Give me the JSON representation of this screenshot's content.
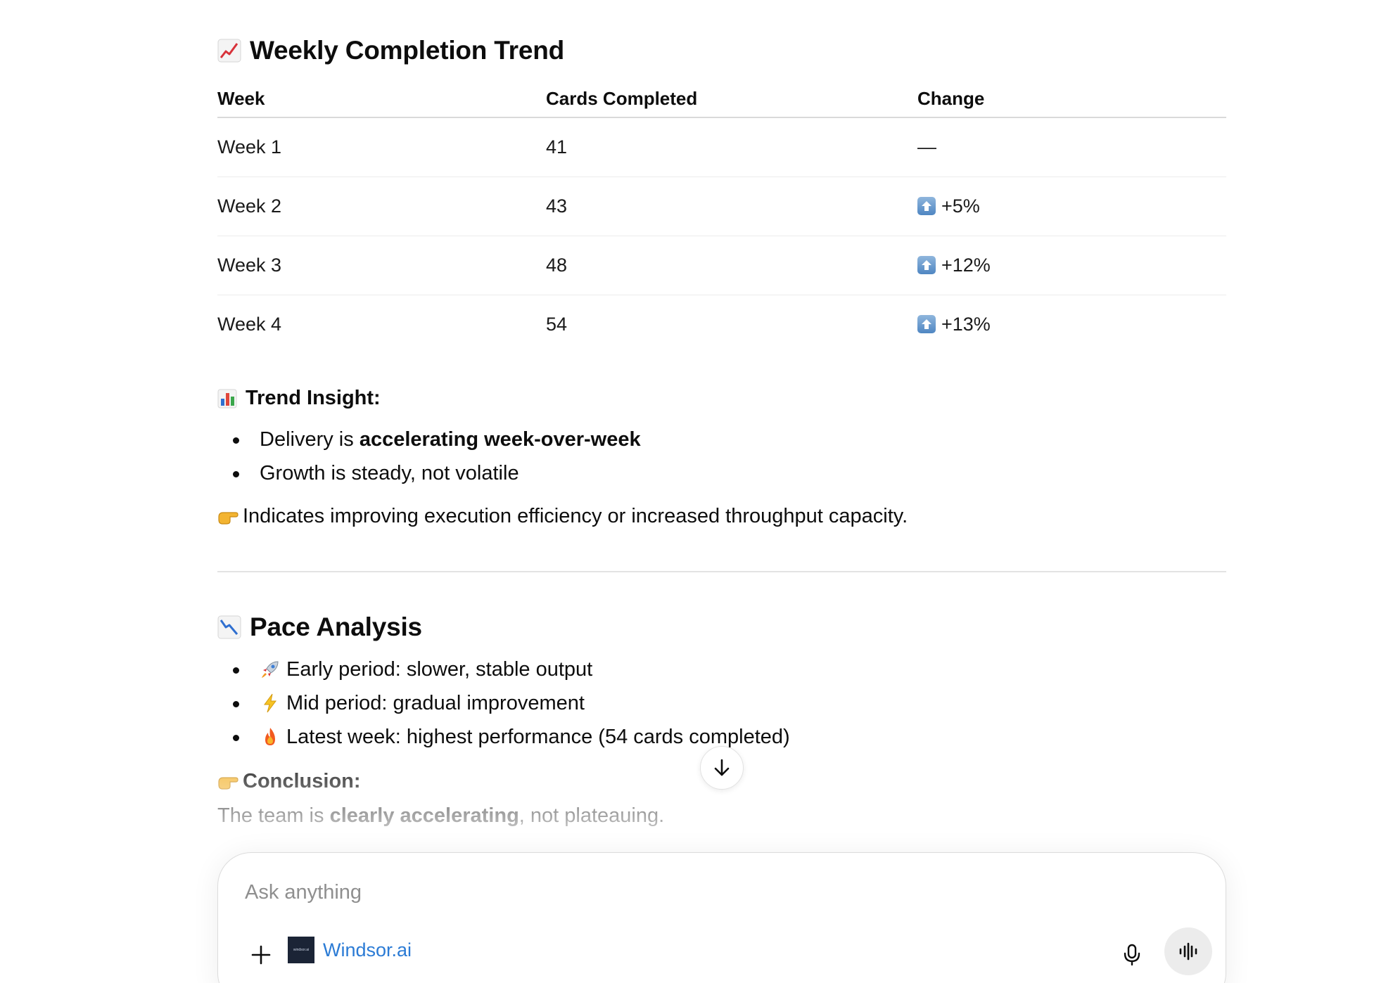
{
  "trend_section": {
    "title": "Weekly Completion Trend",
    "icon": "chart-increasing-emoji",
    "columns": [
      "Week",
      "Cards Completed",
      "Change"
    ],
    "rows": [
      {
        "week": "Week 1",
        "cards": "41",
        "change": "—",
        "up": false
      },
      {
        "week": "Week 2",
        "cards": "43",
        "change": "+5%",
        "up": true
      },
      {
        "week": "Week 3",
        "cards": "48",
        "change": "+12%",
        "up": true
      },
      {
        "week": "Week 4",
        "cards": "54",
        "change": "+13%",
        "up": true
      }
    ]
  },
  "insight": {
    "label": "Trend Insight:",
    "icon": "bar-chart-emoji",
    "bullet1_prefix": "Delivery is ",
    "bullet1_bold": "accelerating week-over-week",
    "bullet2": "Growth is steady, not volatile",
    "pointer_icon": "backhand-index-pointing-right-emoji",
    "pointer_text": "Indicates improving execution efficiency or increased throughput capacity."
  },
  "pace_section": {
    "title": "Pace Analysis",
    "icon": "chart-decreasing-emoji",
    "bullets": [
      {
        "icon": "rocket-emoji",
        "text": "Early period: slower, stable output"
      },
      {
        "icon": "lightning-emoji",
        "text": "Mid period: gradual improvement"
      },
      {
        "icon": "fire-emoji",
        "text": "Latest week: highest performance (54 cards completed)"
      }
    ],
    "conclusion_label": "Conclusion:",
    "conclusion_prefix": "The team is ",
    "conclusion_bold": "clearly accelerating",
    "conclusion_suffix": ", not plateauing."
  },
  "composer": {
    "placeholder": "Ask anything",
    "connector_label": "Windsor.ai",
    "connector_logo_text": "windsor.ai"
  },
  "colors": {
    "text": "#0d0d0d",
    "link": "#2b7bd5",
    "divider": "#e3e3e3",
    "voice_button_bg": "#ececec"
  }
}
